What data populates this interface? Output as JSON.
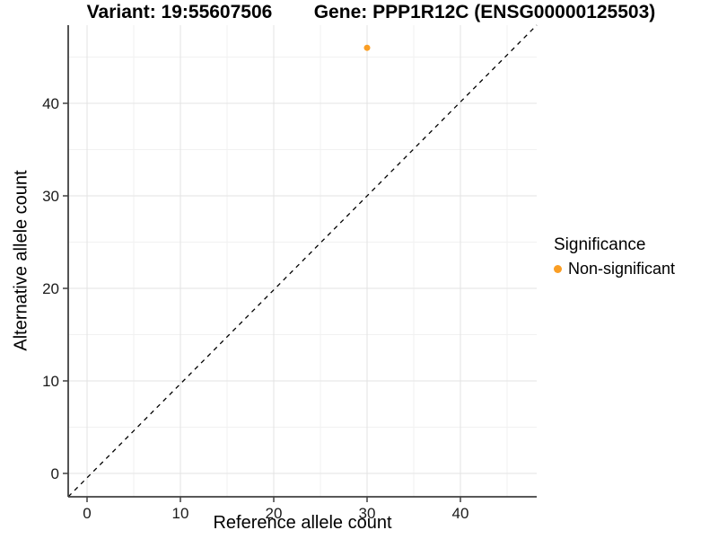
{
  "titles": {
    "variant": "Variant: 19:55607506",
    "gene": "Gene: PPP1R12C (ENSG00000125503)"
  },
  "axes": {
    "x_label": "Reference allele count",
    "y_label": "Alternative allele count"
  },
  "legend": {
    "title": "Significance",
    "items": [
      {
        "label": "Non-significant",
        "color": "#FA9E24"
      }
    ]
  },
  "colors": {
    "point": "#FA9E24",
    "grid_major": "#E3E3E3",
    "grid_minor": "#F1F1F1",
    "axis": "#404040",
    "tick_text": "#1A1A1A",
    "reference_line": "#000000"
  },
  "chart_data": {
    "type": "scatter",
    "title": "Variant: 19:55607506 / Gene: PPP1R12C (ENSG00000125503)",
    "xlabel": "Reference allele count",
    "ylabel": "Alternative allele count",
    "xlim": [
      -2.1,
      48.3
    ],
    "ylim": [
      -2.5,
      48.5
    ],
    "x_ticks": [
      0,
      10,
      20,
      30,
      40
    ],
    "y_ticks": [
      0,
      10,
      20,
      30,
      40
    ],
    "x_minor_ticks": [
      5,
      15,
      25,
      35,
      45
    ],
    "y_minor_ticks": [
      5,
      15,
      25,
      35,
      45
    ],
    "grid": "major+minor",
    "legend_position": "right",
    "series": [
      {
        "name": "Non-significant",
        "color": "#FA9E24",
        "points": [
          {
            "x": 30,
            "y": 46
          }
        ]
      }
    ],
    "reference_line": {
      "kind": "identity y=x",
      "style": "dashed",
      "color": "#000000"
    }
  }
}
